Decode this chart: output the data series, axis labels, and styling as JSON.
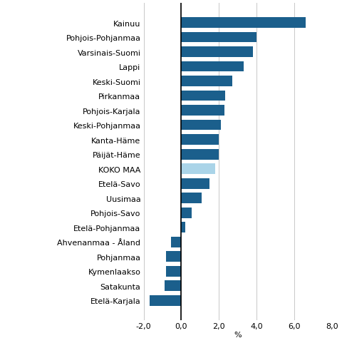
{
  "categories": [
    "Etelä-Karjala",
    "Satakunta",
    "Kymenlaakso",
    "Pohjanmaa",
    "Ahvenanmaa - Åland",
    "Etelä-Pohjanmaa",
    "Pohjois-Savo",
    "Uusimaa",
    "Etelä-Savo",
    "KOKO MAA",
    "Päijät-Häme",
    "Kanta-Häme",
    "Keski-Pohjanmaa",
    "Pohjois-Karjala",
    "Pirkanmaa",
    "Keski-Suomi",
    "Lappi",
    "Varsinais-Suomi",
    "Pohjois-Pohjanmaa",
    "Kainuu"
  ],
  "values": [
    -1.7,
    -0.9,
    -0.8,
    -0.8,
    -0.55,
    0.2,
    0.55,
    1.1,
    1.5,
    1.8,
    2.0,
    2.0,
    2.1,
    2.3,
    2.35,
    2.7,
    3.3,
    3.8,
    4.0,
    6.6
  ],
  "bar_colors": [
    "#1b5f8c",
    "#1b5f8c",
    "#1b5f8c",
    "#1b5f8c",
    "#1b5f8c",
    "#1b5f8c",
    "#1b5f8c",
    "#1b5f8c",
    "#1b5f8c",
    "#aad4e8",
    "#1b5f8c",
    "#1b5f8c",
    "#1b5f8c",
    "#1b5f8c",
    "#1b5f8c",
    "#1b5f8c",
    "#1b5f8c",
    "#1b5f8c",
    "#1b5f8c",
    "#1b5f8c"
  ],
  "xlabel": "%",
  "xlim": [
    -2.0,
    8.0
  ],
  "xticks": [
    -2.0,
    0.0,
    2.0,
    4.0,
    6.0,
    8.0
  ],
  "xtick_labels": [
    "-2,0",
    "0,0",
    "2,0",
    "4,0",
    "6,0",
    "8,0"
  ],
  "background_color": "#ffffff",
  "grid_color": "#c8c8c8",
  "bar_height": 0.72,
  "label_fontsize": 8.0,
  "tick_fontsize": 8.0
}
